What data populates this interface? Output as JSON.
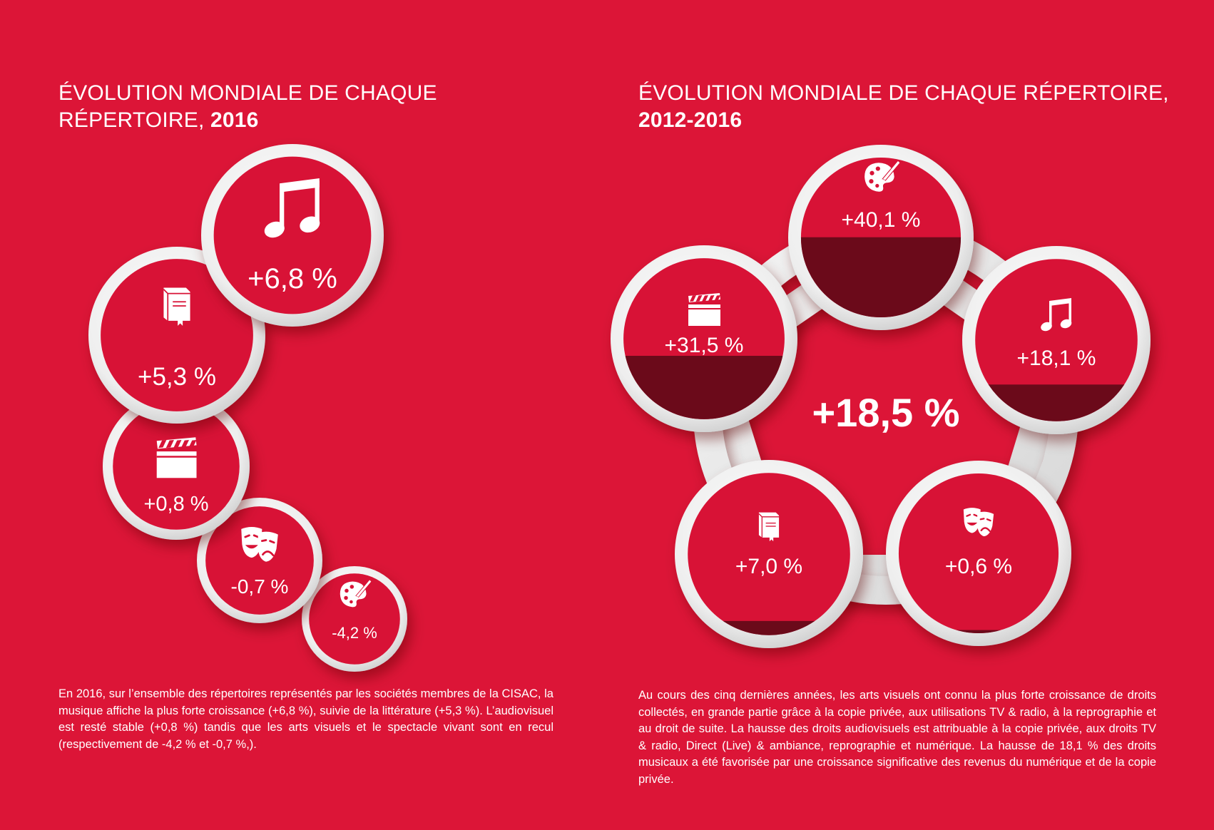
{
  "left": {
    "title_line1": "ÉVOLUTION MONDIALE DE CHAQUE",
    "title_line2_prefix": "RÉPERTOIRE, ",
    "title_line2_year": "2016",
    "paragraph": "En 2016, sur l’ensemble des répertoires représentés par les sociétés membres de la CISAC, la musique affiche la plus forte croissance (+6,8 %), suivie de la littérature (+5,3 %). L’audiovisuel est resté stable (+0,8 %) tandis que les arts visuels et le spectacle vivant sont en recul (respectivement de -4,2 % et -0,7 %,)."
  },
  "right": {
    "title_line1": "ÉVOLUTION MONDIALE DE CHAQUE RÉPERTOIRE,",
    "title_line2": "2012-2016",
    "paragraph": "Au cours des cinq dernières années, les arts visuels ont connu la plus forte croissance de droits collectés, en grande partie grâce à la copie privée, aux utilisations TV & radio, à la reprographie et au droit de suite. La hausse des droits audiovisuels est attribuable à la copie privée, aux droits  TV & radio, Direct (Live) & ambiance, reprographie et numérique. La hausse de 18,1 % des droits musicaux a été favorisée par une croissance significative des revenus du numérique et de la copie privée."
  },
  "colors": {
    "background": "#dc1537",
    "bubble_red": "#d81236",
    "fill_dark": "#6b0a1a",
    "ring_light": "#f2f2f2"
  },
  "chart_data": [
    {
      "type": "bubble",
      "categories": [
        "musique",
        "littérature",
        "audiovisuel",
        "spectacle vivant",
        "arts visuels"
      ],
      "icons": [
        "music-note-icon",
        "book-icon",
        "clapperboard-icon",
        "theatre-masks-icon",
        "palette-icon"
      ],
      "values": [
        6.8,
        5.3,
        0.8,
        -0.7,
        -4.2
      ],
      "labels": [
        "+6,8 %",
        "+5,3 %",
        "+0,8 %",
        "-0,7 %",
        "-4,2 %"
      ]
    },
    {
      "type": "bubble-ring",
      "categories": [
        "arts visuels",
        "musique",
        "spectacle vivant",
        "littérature",
        "audiovisuel"
      ],
      "icons": [
        "palette-icon",
        "music-note-icon",
        "theatre-masks-icon",
        "book-icon",
        "clapperboard-icon"
      ],
      "values": [
        40.1,
        18.1,
        0.6,
        7.0,
        31.5
      ],
      "labels": [
        "+40,1 %",
        "+18,1 %",
        "+0,6 %",
        "+7,0 %",
        "+31,5 %"
      ],
      "total_value": 18.5,
      "total_label": "+18,5 %"
    }
  ]
}
